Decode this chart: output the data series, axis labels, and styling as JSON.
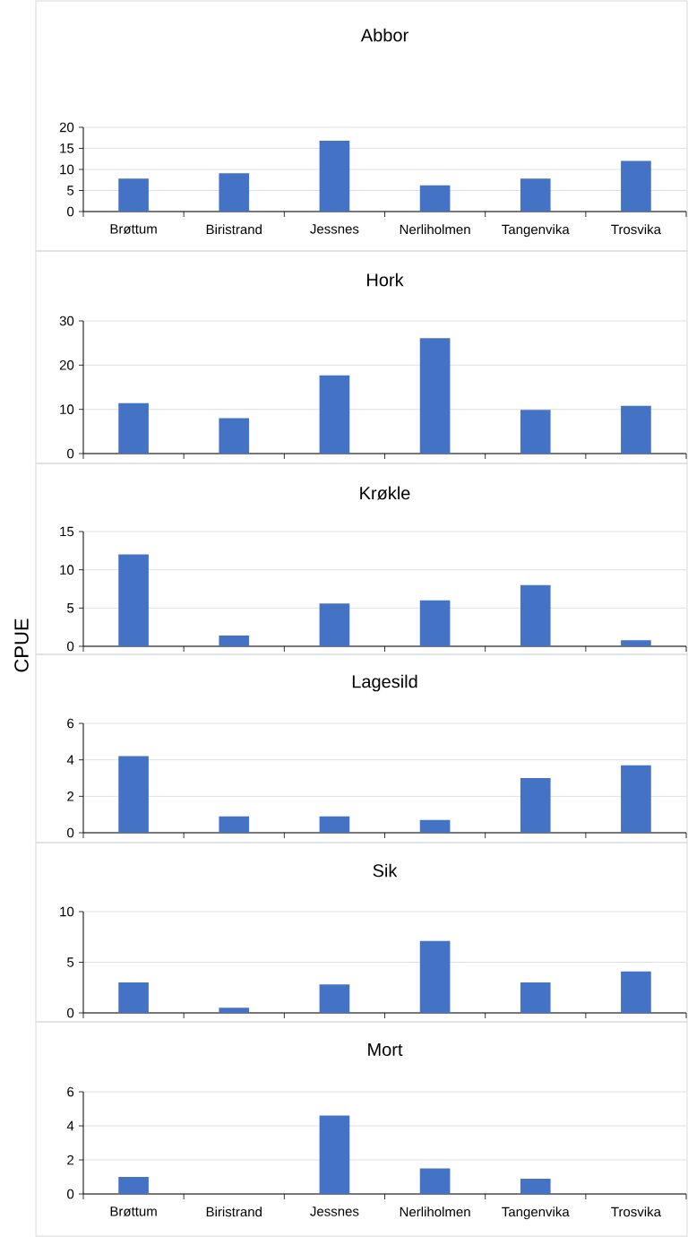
{
  "chart_data": [
    {
      "type": "bar",
      "title": "Abbor",
      "categories": [
        "Brøttum",
        "Biristrand",
        "Jessnes",
        "Nerliholmen",
        "Tangenvika",
        "Trosvika"
      ],
      "values": [
        7.8,
        9.1,
        16.8,
        6.2,
        7.8,
        12.0
      ],
      "color": "#4472c4",
      "ylim": [
        0,
        20
      ],
      "yticks": [
        0,
        5,
        10,
        15,
        20
      ],
      "grid": "y"
    },
    {
      "type": "bar",
      "title": "Hork",
      "categories": [
        null,
        null,
        null,
        null,
        null,
        null
      ],
      "values": [
        11.4,
        8.0,
        17.7,
        26.1,
        9.9,
        10.8
      ],
      "color": "#4472c4",
      "ylim": [
        0,
        30
      ],
      "yticks": [
        0,
        10,
        20,
        30
      ],
      "grid": "y",
      "tick_labels": "y"
    },
    {
      "type": "bar",
      "title": "Krøkle",
      "ylabel": "CPUE",
      "categories": [
        null,
        null,
        null,
        null,
        null,
        null
      ],
      "values": [
        12.0,
        1.4,
        5.6,
        6.0,
        8.0,
        0.8
      ],
      "color": "#4472c4",
      "ylim": [
        0,
        15
      ],
      "yticks": [
        0,
        5,
        10,
        15
      ],
      "grid": "y",
      "tick_labels": "y"
    },
    {
      "type": "bar",
      "title": "Lagesild",
      "categories": [
        null,
        null,
        null,
        null,
        null,
        null
      ],
      "values": [
        4.2,
        0.9,
        0.9,
        0.7,
        3.0,
        3.7
      ],
      "color": "#4472c4",
      "ylim": [
        0,
        6
      ],
      "yticks": [
        0,
        2,
        4,
        6
      ],
      "grid": "y",
      "tick_labels": "y"
    },
    {
      "type": "bar",
      "title": "Sik",
      "categories": [
        null,
        null,
        null,
        null,
        null,
        null
      ],
      "values": [
        3.0,
        0.5,
        2.8,
        7.1,
        3.0,
        4.1
      ],
      "color": "#4472c4",
      "ylim": [
        0,
        10
      ],
      "yticks": [
        0,
        5,
        10
      ],
      "grid": "y",
      "tick_labels": "y"
    },
    {
      "type": "bar",
      "title": "Mort",
      "categories": [
        "Brøttum",
        "Biristrand",
        "Jessnes",
        "Nerliholmen",
        "Tangenvika",
        "Trosvika"
      ],
      "values": [
        1.0,
        0,
        4.6,
        1.5,
        0.9,
        0
      ],
      "color": "#4472c4",
      "ylim": [
        0,
        6
      ],
      "yticks": [
        0,
        2,
        4,
        6
      ],
      "grid": "y"
    }
  ]
}
